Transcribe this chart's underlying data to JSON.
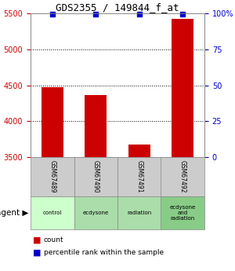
{
  "title": "GDS2355 / 149844_f_at",
  "samples": [
    "GSM67489",
    "GSM67490",
    "GSM67491",
    "GSM67492"
  ],
  "agents": [
    "control",
    "ecdysone",
    "radiation",
    "ecdysone\nand\nradiation"
  ],
  "agent_colors": [
    "#ccffcc",
    "#aaddaa",
    "#aaddaa",
    "#88cc88"
  ],
  "counts": [
    4480,
    4370,
    3680,
    5430
  ],
  "ylim": [
    3500,
    5500
  ],
  "yticks": [
    3500,
    4000,
    4500,
    5000,
    5500
  ],
  "right_ylabels": [
    "0",
    "25",
    "50",
    "75",
    "100%"
  ],
  "right_ytick_vals": [
    3500,
    4000,
    4500,
    5000,
    5500
  ],
  "bar_color": "#cc0000",
  "pct_color": "#0000cc",
  "pct_yval": 5490,
  "bar_width": 0.5,
  "pct_marker_size": 5,
  "background_color": "#ffffff",
  "legend_count_label": "count",
  "legend_pct_label": "percentile rank within the sample",
  "agent_label": "agent",
  "sample_box_color": "#cccccc",
  "left_tick_color": "#cc0000",
  "right_tick_color": "#0000cc",
  "grid_lines": [
    4000,
    4500,
    5000
  ]
}
